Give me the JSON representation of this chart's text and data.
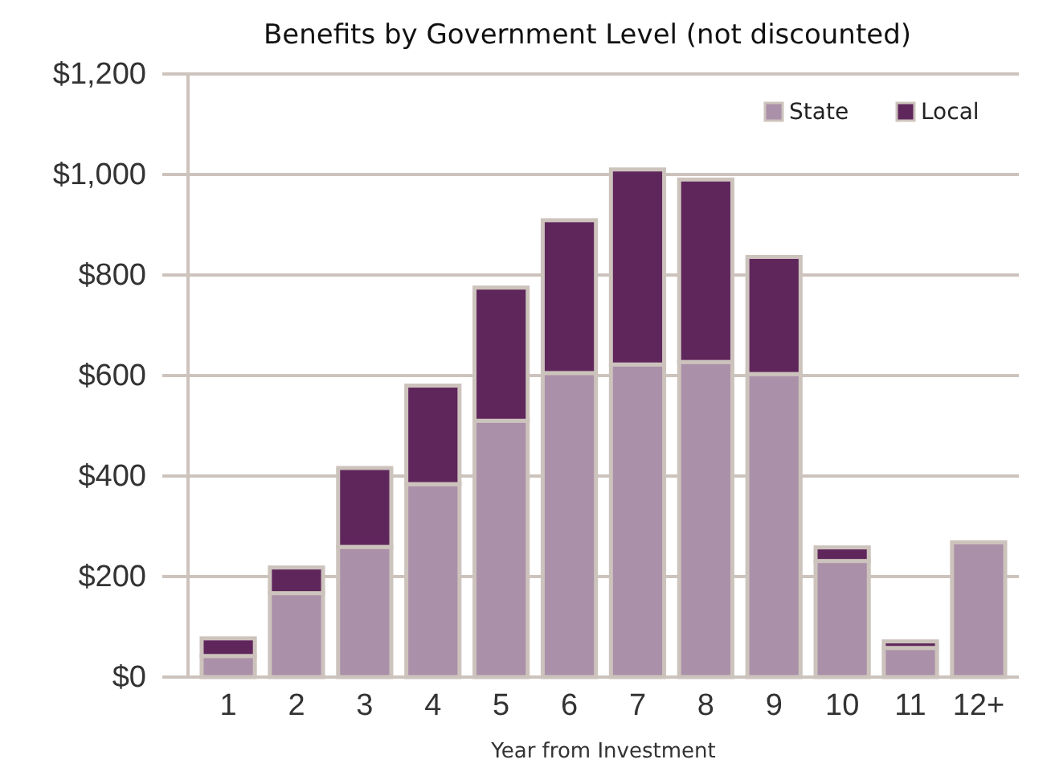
{
  "chart_data": {
    "type": "bar",
    "title": "Benefits by Government Level (not discounted)",
    "xlabel": "Year from Investment",
    "categories": [
      "1",
      "2",
      "3",
      "4",
      "5",
      "6",
      "7",
      "8",
      "9",
      "10",
      "11",
      "12+"
    ],
    "stacked": true,
    "series": [
      {
        "name": "State",
        "color": "#aa90a8",
        "values": [
          42,
          167,
          259,
          384,
          510,
          605,
          622,
          627,
          603,
          231,
          58,
          268
        ]
      },
      {
        "name": "Local",
        "color": "#5f265c",
        "values": [
          35,
          51,
          157,
          196,
          265,
          304,
          388,
          363,
          233,
          27,
          13,
          0
        ]
      }
    ],
    "ylim": [
      0,
      1200
    ],
    "yticks": [
      {
        "value": 0,
        "label": "$0"
      },
      {
        "value": 200,
        "label": "$200"
      },
      {
        "value": 400,
        "label": "$400"
      },
      {
        "value": 600,
        "label": "$600"
      },
      {
        "value": 800,
        "label": "$800"
      },
      {
        "value": 1000,
        "label": "$1,000"
      },
      {
        "value": 1200,
        "label": "$1,200"
      }
    ],
    "grid": "y",
    "legend": "top right"
  }
}
